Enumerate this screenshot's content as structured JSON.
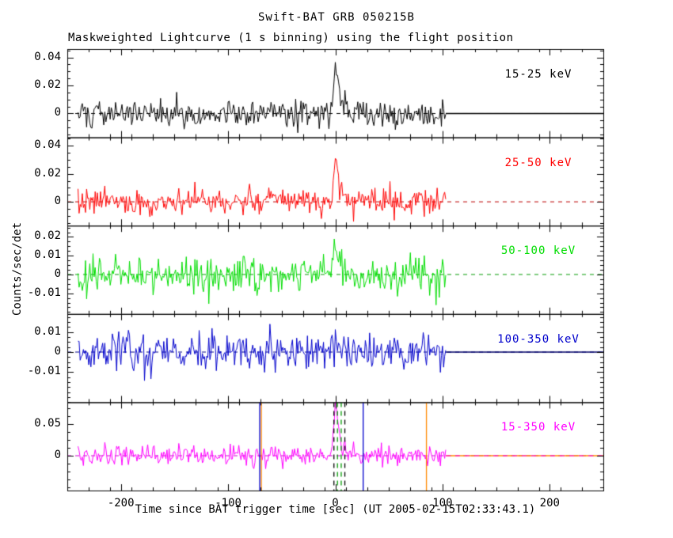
{
  "chart_data": {
    "type": "line",
    "title": "Swift-BAT GRB 050215B",
    "subtitle": "Maskweighted Lightcurve (1 s binning) using the flight position",
    "xlabel": "Time since BAT trigger time [sec] (UT 2005-02-15T02:33:43.1)",
    "ylabel": "Counts/sec/det",
    "x_range": [
      -250,
      250
    ],
    "x_ticks": [
      -200,
      -100,
      0,
      100,
      200
    ],
    "x_tick_labels": [
      "-200",
      "-100",
      "0",
      "100",
      "200"
    ],
    "x_minor_step": 20,
    "data_start": -240,
    "data_end": 103,
    "bin_seconds": 1,
    "panels": [
      {
        "label": "15-25 keV",
        "color": "#000000",
        "zero_dash_color": "#000000",
        "post_solid_color": "#000000",
        "ylim": [
          -0.017,
          0.046
        ],
        "yticks": [
          0,
          0.02,
          0.04
        ],
        "ytick_labels": [
          "0",
          "0.02",
          "0.04"
        ],
        "y_minor_step": 0.005,
        "noise_sigma": 0.0047,
        "peaks": [
          {
            "t0": 0,
            "amp": 0.034,
            "rise": 1.5,
            "decay": 3.0
          },
          {
            "t0": 9,
            "amp": 0.008,
            "rise": 2.0,
            "decay": 3.0
          }
        ],
        "seed": 101
      },
      {
        "label": "25-50 keV",
        "color": "#ff0000",
        "zero_dash_color": "#bb0000",
        "post_solid_color": null,
        "ylim": [
          -0.017,
          0.046
        ],
        "yticks": [
          0,
          0.02,
          0.04
        ],
        "ytick_labels": [
          "0",
          "0.02",
          "0.04"
        ],
        "y_minor_step": 0.005,
        "noise_sigma": 0.0047,
        "peaks": [
          {
            "t0": 0,
            "amp": 0.034,
            "rise": 1.5,
            "decay": 3.0
          },
          {
            "t0": 9,
            "amp": 0.006,
            "rise": 2.0,
            "decay": 3.0
          }
        ],
        "seed": 202
      },
      {
        "label": "50-100 keV",
        "color": "#00dd00",
        "zero_dash_color": "#009900",
        "post_solid_color": null,
        "ylim": [
          -0.021,
          0.026
        ],
        "yticks": [
          -0.01,
          0,
          0.01,
          0.02
        ],
        "ytick_labels": [
          "-0.01",
          "0",
          "0.01",
          "0.02"
        ],
        "y_minor_step": 0.0025,
        "noise_sigma": 0.0047,
        "peaks": [
          {
            "t0": 0,
            "amp": 0.017,
            "rise": 1.5,
            "decay": 3.0
          }
        ],
        "seed": 303
      },
      {
        "label": "100-350 keV",
        "color": "#0000cc",
        "zero_dash_color": "#000088",
        "post_solid_color": "#000066",
        "ylim": [
          -0.025,
          0.019
        ],
        "yticks": [
          -0.01,
          0,
          0.01
        ],
        "ytick_labels": [
          "-0.01",
          "0",
          "0.01"
        ],
        "y_minor_step": 0.0025,
        "noise_sigma": 0.0047,
        "peaks": [
          {
            "t0": 0,
            "amp": 0.004,
            "rise": 1.5,
            "decay": 3.0
          }
        ],
        "seed": 404
      },
      {
        "label": "15-350 keV",
        "color": "#ff00ff",
        "zero_dash_color": "#cc00cc",
        "post_solid_color": "#ff8800",
        "ylim": [
          -0.055,
          0.0845
        ],
        "yticks": [
          0,
          0.05
        ],
        "ytick_labels": [
          "0",
          "0.05"
        ],
        "y_minor_step": 0.0125,
        "noise_sigma": 0.0085,
        "peaks": [
          {
            "t0": 0,
            "amp": 0.08,
            "rise": 1.5,
            "decay": 3.0
          },
          {
            "t0": 9,
            "amp": 0.014,
            "rise": 2.0,
            "decay": 3.0
          }
        ],
        "seed": 505
      }
    ],
    "event_lines": [
      {
        "panel": 4,
        "t": -70.5,
        "color": "#0000cc",
        "style": "solid"
      },
      {
        "panel": 4,
        "t": -69.0,
        "color": "#ff8800",
        "style": "solid"
      },
      {
        "panel": 4,
        "t": -1.3,
        "color": "#000000",
        "style": "dashed"
      },
      {
        "panel": 4,
        "t": 8.9,
        "color": "#000000",
        "style": "dashed"
      },
      {
        "panel": 4,
        "t": 2.0,
        "color": "#009900",
        "style": "dashed"
      },
      {
        "panel": 4,
        "t": 5.5,
        "color": "#009900",
        "style": "dashed"
      },
      {
        "panel": 4,
        "t": 26.0,
        "color": "#0000cc",
        "style": "solid"
      },
      {
        "panel": 4,
        "t": 85.0,
        "color": "#ff8800",
        "style": "solid"
      }
    ]
  }
}
